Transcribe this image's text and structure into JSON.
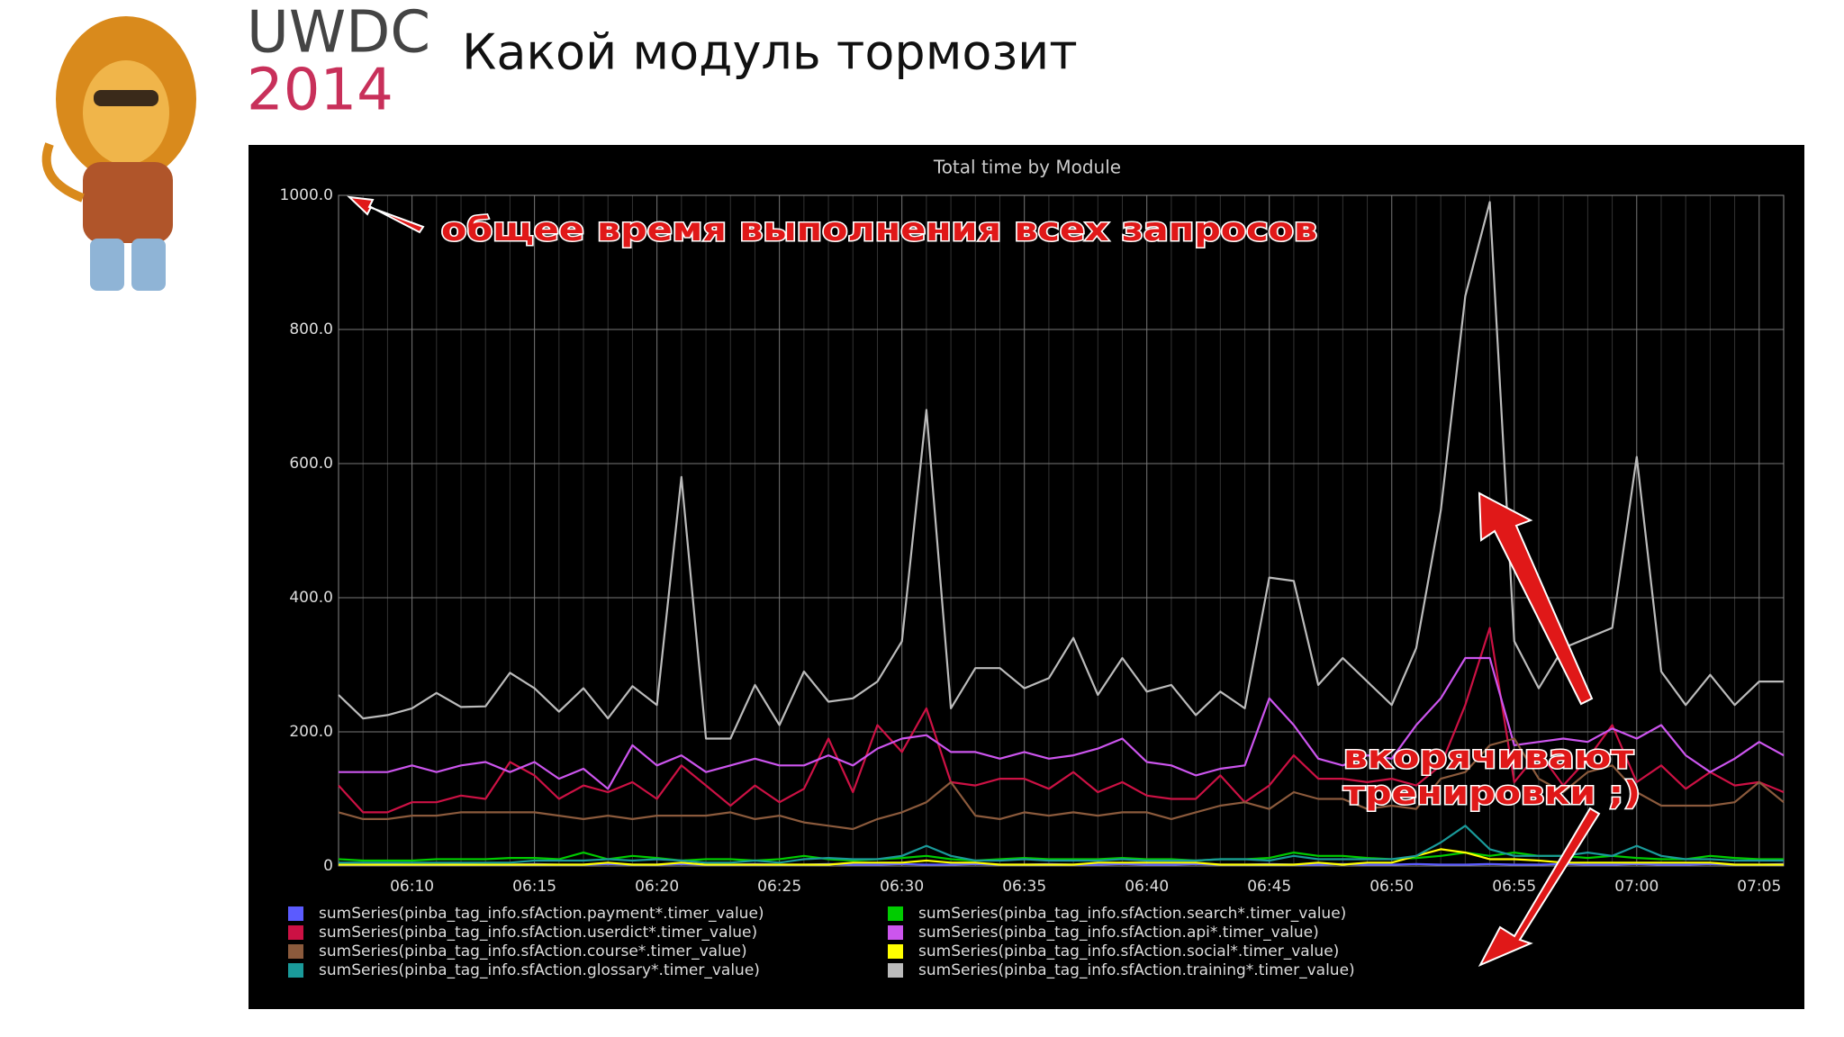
{
  "header": {
    "logo_top": "UWDC",
    "logo_year": "2014",
    "title": "Какой модуль тормозит"
  },
  "chart_data": {
    "type": "line",
    "title": "Total time by Module",
    "annotations": [
      "общее время выполнения всех запросов",
      "вкорячивают",
      "тренировки ;)"
    ],
    "categories": [
      null,
      null,
      null,
      "06:10",
      null,
      null,
      null,
      null,
      "06:15",
      null,
      null,
      null,
      null,
      "06:20",
      null,
      null,
      null,
      null,
      "06:25",
      null,
      null,
      null,
      null,
      "06:30",
      null,
      null,
      null,
      null,
      "06:35",
      null,
      null,
      null,
      null,
      "06:40",
      null,
      null,
      null,
      null,
      "06:45",
      null,
      null,
      null,
      null,
      "06:50",
      null,
      null,
      null,
      null,
      "06:55",
      null,
      null,
      null,
      null,
      "07:00",
      null,
      null,
      null,
      null,
      "07:05",
      null
    ],
    "ylim": [
      0,
      1000
    ],
    "yticks": [
      0,
      {
        "value": 200,
        "label": "200.0"
      },
      {
        "value": 400,
        "label": "400.0"
      },
      {
        "value": 600,
        "label": "600.0"
      },
      {
        "value": 800,
        "label": "800.0"
      },
      {
        "value": 1000,
        "label": "1000.0"
      }
    ],
    "grid": true,
    "series": [
      {
        "name": "sumSeries(pinba_tag_info.sfAction.payment*.timer_value)",
        "color": "#5b5bff",
        "values": [
          2,
          2,
          3,
          2,
          2,
          3,
          2,
          2,
          3,
          2,
          2,
          3,
          2,
          2,
          3,
          2,
          2,
          3,
          2,
          2,
          3,
          2,
          2,
          3,
          2,
          2,
          3,
          2,
          2,
          3,
          2,
          2,
          3,
          2,
          2,
          3,
          2,
          2,
          3,
          2,
          2,
          3,
          2,
          2,
          3,
          2,
          2,
          3,
          2,
          2,
          3,
          2,
          2,
          3,
          2,
          2,
          3,
          2,
          2,
          3
        ]
      },
      {
        "name": "sumSeries(pinba_tag_info.sfAction.search*.timer_value)",
        "color": "#00cc00",
        "values": [
          10,
          8,
          8,
          8,
          10,
          10,
          10,
          12,
          12,
          10,
          20,
          10,
          15,
          12,
          8,
          10,
          10,
          8,
          10,
          15,
          10,
          8,
          10,
          12,
          15,
          10,
          8,
          10,
          12,
          10,
          10,
          10,
          12,
          10,
          10,
          8,
          10,
          10,
          12,
          20,
          15,
          15,
          12,
          10,
          12,
          15,
          20,
          15,
          20,
          15,
          15,
          12,
          15,
          12,
          10,
          10,
          15,
          12,
          10,
          10
        ]
      },
      {
        "name": "sumSeries(pinba_tag_info.sfAction.userdict*.timer_value)",
        "color": "#cc1144",
        "values": [
          120,
          80,
          80,
          95,
          95,
          105,
          100,
          155,
          135,
          100,
          120,
          110,
          125,
          100,
          150,
          120,
          90,
          120,
          95,
          115,
          190,
          110,
          210,
          170,
          235,
          125,
          120,
          130,
          130,
          115,
          140,
          110,
          125,
          105,
          100,
          100,
          135,
          95,
          120,
          165,
          130,
          130,
          125,
          130,
          120,
          150,
          240,
          355,
          125,
          170,
          120,
          160,
          210,
          125,
          150,
          115,
          140,
          120,
          125,
          110
        ]
      },
      {
        "name": "sumSeries(pinba_tag_info.sfAction.api*.timer_value)",
        "color": "#cc55ee",
        "values": [
          140,
          140,
          140,
          150,
          140,
          150,
          155,
          140,
          155,
          130,
          145,
          115,
          180,
          150,
          165,
          140,
          150,
          160,
          150,
          150,
          165,
          150,
          175,
          190,
          195,
          170,
          170,
          160,
          170,
          160,
          165,
          175,
          190,
          155,
          150,
          135,
          145,
          150,
          250,
          210,
          160,
          150,
          165,
          160,
          210,
          250,
          310,
          310,
          180,
          185,
          190,
          185,
          205,
          190,
          210,
          165,
          140,
          160,
          185,
          165
        ]
      },
      {
        "name": "sumSeries(pinba_tag_info.sfAction.course*.timer_value)",
        "color": "#8b5a3c",
        "values": [
          80,
          70,
          70,
          75,
          75,
          80,
          80,
          80,
          80,
          75,
          70,
          75,
          70,
          75,
          75,
          75,
          80,
          70,
          75,
          65,
          60,
          55,
          70,
          80,
          95,
          125,
          75,
          70,
          80,
          75,
          80,
          75,
          80,
          80,
          70,
          80,
          90,
          95,
          85,
          110,
          100,
          100,
          85,
          90,
          85,
          130,
          140,
          180,
          190,
          130,
          110,
          140,
          150,
          110,
          90,
          90,
          90,
          95,
          125,
          95
        ]
      },
      {
        "name": "sumSeries(pinba_tag_info.sfAction.social*.timer_value)",
        "color": "#ffff00",
        "values": [
          2,
          2,
          2,
          2,
          2,
          2,
          2,
          2,
          2,
          2,
          2,
          5,
          2,
          2,
          5,
          2,
          2,
          2,
          2,
          2,
          2,
          5,
          5,
          5,
          8,
          5,
          5,
          2,
          2,
          2,
          2,
          5,
          5,
          5,
          5,
          5,
          2,
          2,
          2,
          2,
          5,
          2,
          5,
          5,
          15,
          25,
          20,
          10,
          10,
          8,
          5,
          5,
          5,
          5,
          5,
          5,
          5,
          2,
          2,
          2
        ]
      },
      {
        "name": "sumSeries(pinba_tag_info.sfAction.glossary*.timer_value)",
        "color": "#1a9a9a",
        "values": [
          5,
          5,
          5,
          5,
          5,
          5,
          5,
          5,
          8,
          8,
          8,
          10,
          8,
          10,
          8,
          5,
          5,
          8,
          5,
          10,
          12,
          10,
          10,
          15,
          30,
          15,
          8,
          8,
          10,
          8,
          8,
          8,
          10,
          8,
          8,
          8,
          10,
          10,
          8,
          15,
          10,
          10,
          10,
          10,
          15,
          35,
          60,
          25,
          15,
          15,
          15,
          20,
          15,
          30,
          15,
          10,
          10,
          8,
          8,
          8
        ]
      },
      {
        "name": "sumSeries(pinba_tag_info.sfAction.training*.timer_value)",
        "color": "#bbbbbb",
        "values": [
          255,
          220,
          225,
          235,
          258,
          237,
          238,
          288,
          265,
          230,
          265,
          220,
          268,
          240,
          580,
          190,
          190,
          270,
          210,
          290,
          245,
          250,
          275,
          335,
          680,
          235,
          295,
          295,
          265,
          280,
          340,
          255,
          310,
          260,
          270,
          225,
          260,
          235,
          430,
          425,
          270,
          310,
          275,
          240,
          325,
          530,
          850,
          990,
          335,
          265,
          325,
          340,
          355,
          610,
          290,
          240,
          285,
          240,
          275,
          275
        ]
      }
    ]
  }
}
